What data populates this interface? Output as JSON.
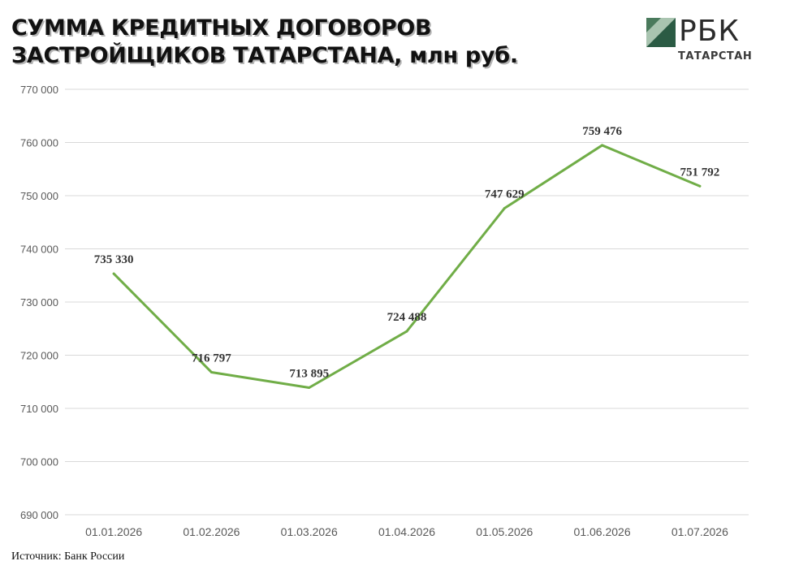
{
  "title_lines": [
    "СУММА КРЕДИТНЫХ ДОГОВОРОВ",
    "ЗАСТРОЙЩИКОВ ТАТАРСТАНА, млн руб."
  ],
  "logo": {
    "name": "РБК",
    "region": "ТАТАРСТАН",
    "colors": [
      "#4a7a5c",
      "#2b5b44",
      "#a9c4b0"
    ]
  },
  "source": "Источник: Банк России",
  "chart_data": {
    "type": "line",
    "title": "СУММА КРЕДИТНЫХ ДОГОВОРОВ ЗАСТРОЙЩИКОВ ТАТАРСТАНА, млн руб.",
    "categories": [
      "01.01.2026",
      "01.02.2026",
      "01.03.2026",
      "01.04.2026",
      "01.05.2026",
      "01.06.2026",
      "01.07.2026"
    ],
    "series": [
      {
        "values": [
          735330,
          716797,
          713895,
          724488,
          747629,
          759476,
          751792
        ],
        "labels": [
          "735 330",
          "716 797",
          "713 895",
          "724 488",
          "747 629",
          "759 476",
          "751 792"
        ],
        "color": "#70ad47"
      }
    ],
    "ylim": [
      690000,
      770000
    ],
    "yticks": [
      690000,
      700000,
      710000,
      720000,
      730000,
      740000,
      750000,
      760000,
      770000
    ],
    "ytick_labels": [
      "690 000",
      "700 000",
      "710 000",
      "720 000",
      "730 000",
      "740 000",
      "750 000",
      "760 000",
      "770 000"
    ],
    "grid": true,
    "legend": "none",
    "gridline_color": "#d9d9d9"
  }
}
